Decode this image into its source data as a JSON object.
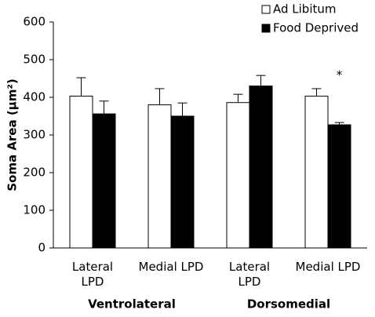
{
  "chart_data": {
    "type": "bar",
    "y_label": "Soma Area (µm²)",
    "categories": [
      "Lateral\nLPD",
      "Medial LPD",
      "Lateral\nLPD",
      "Medial LPD"
    ],
    "group_labels": [
      "Ventrolateral",
      "Dorsomedial"
    ],
    "series": [
      {
        "name": "Ad Libitum",
        "color": "#ffffff",
        "values": [
          403,
          380,
          386,
          403
        ],
        "errors": [
          49,
          43,
          22,
          20
        ]
      },
      {
        "name": "Food Deprived",
        "color": "#000000",
        "values": [
          356,
          350,
          430,
          327
        ],
        "errors": [
          34,
          35,
          28,
          6
        ]
      }
    ],
    "annotation": "*",
    "ylim": [
      0,
      600
    ],
    "yticks": [
      0,
      100,
      200,
      300,
      400,
      500,
      600
    ],
    "legend": "top-right"
  }
}
